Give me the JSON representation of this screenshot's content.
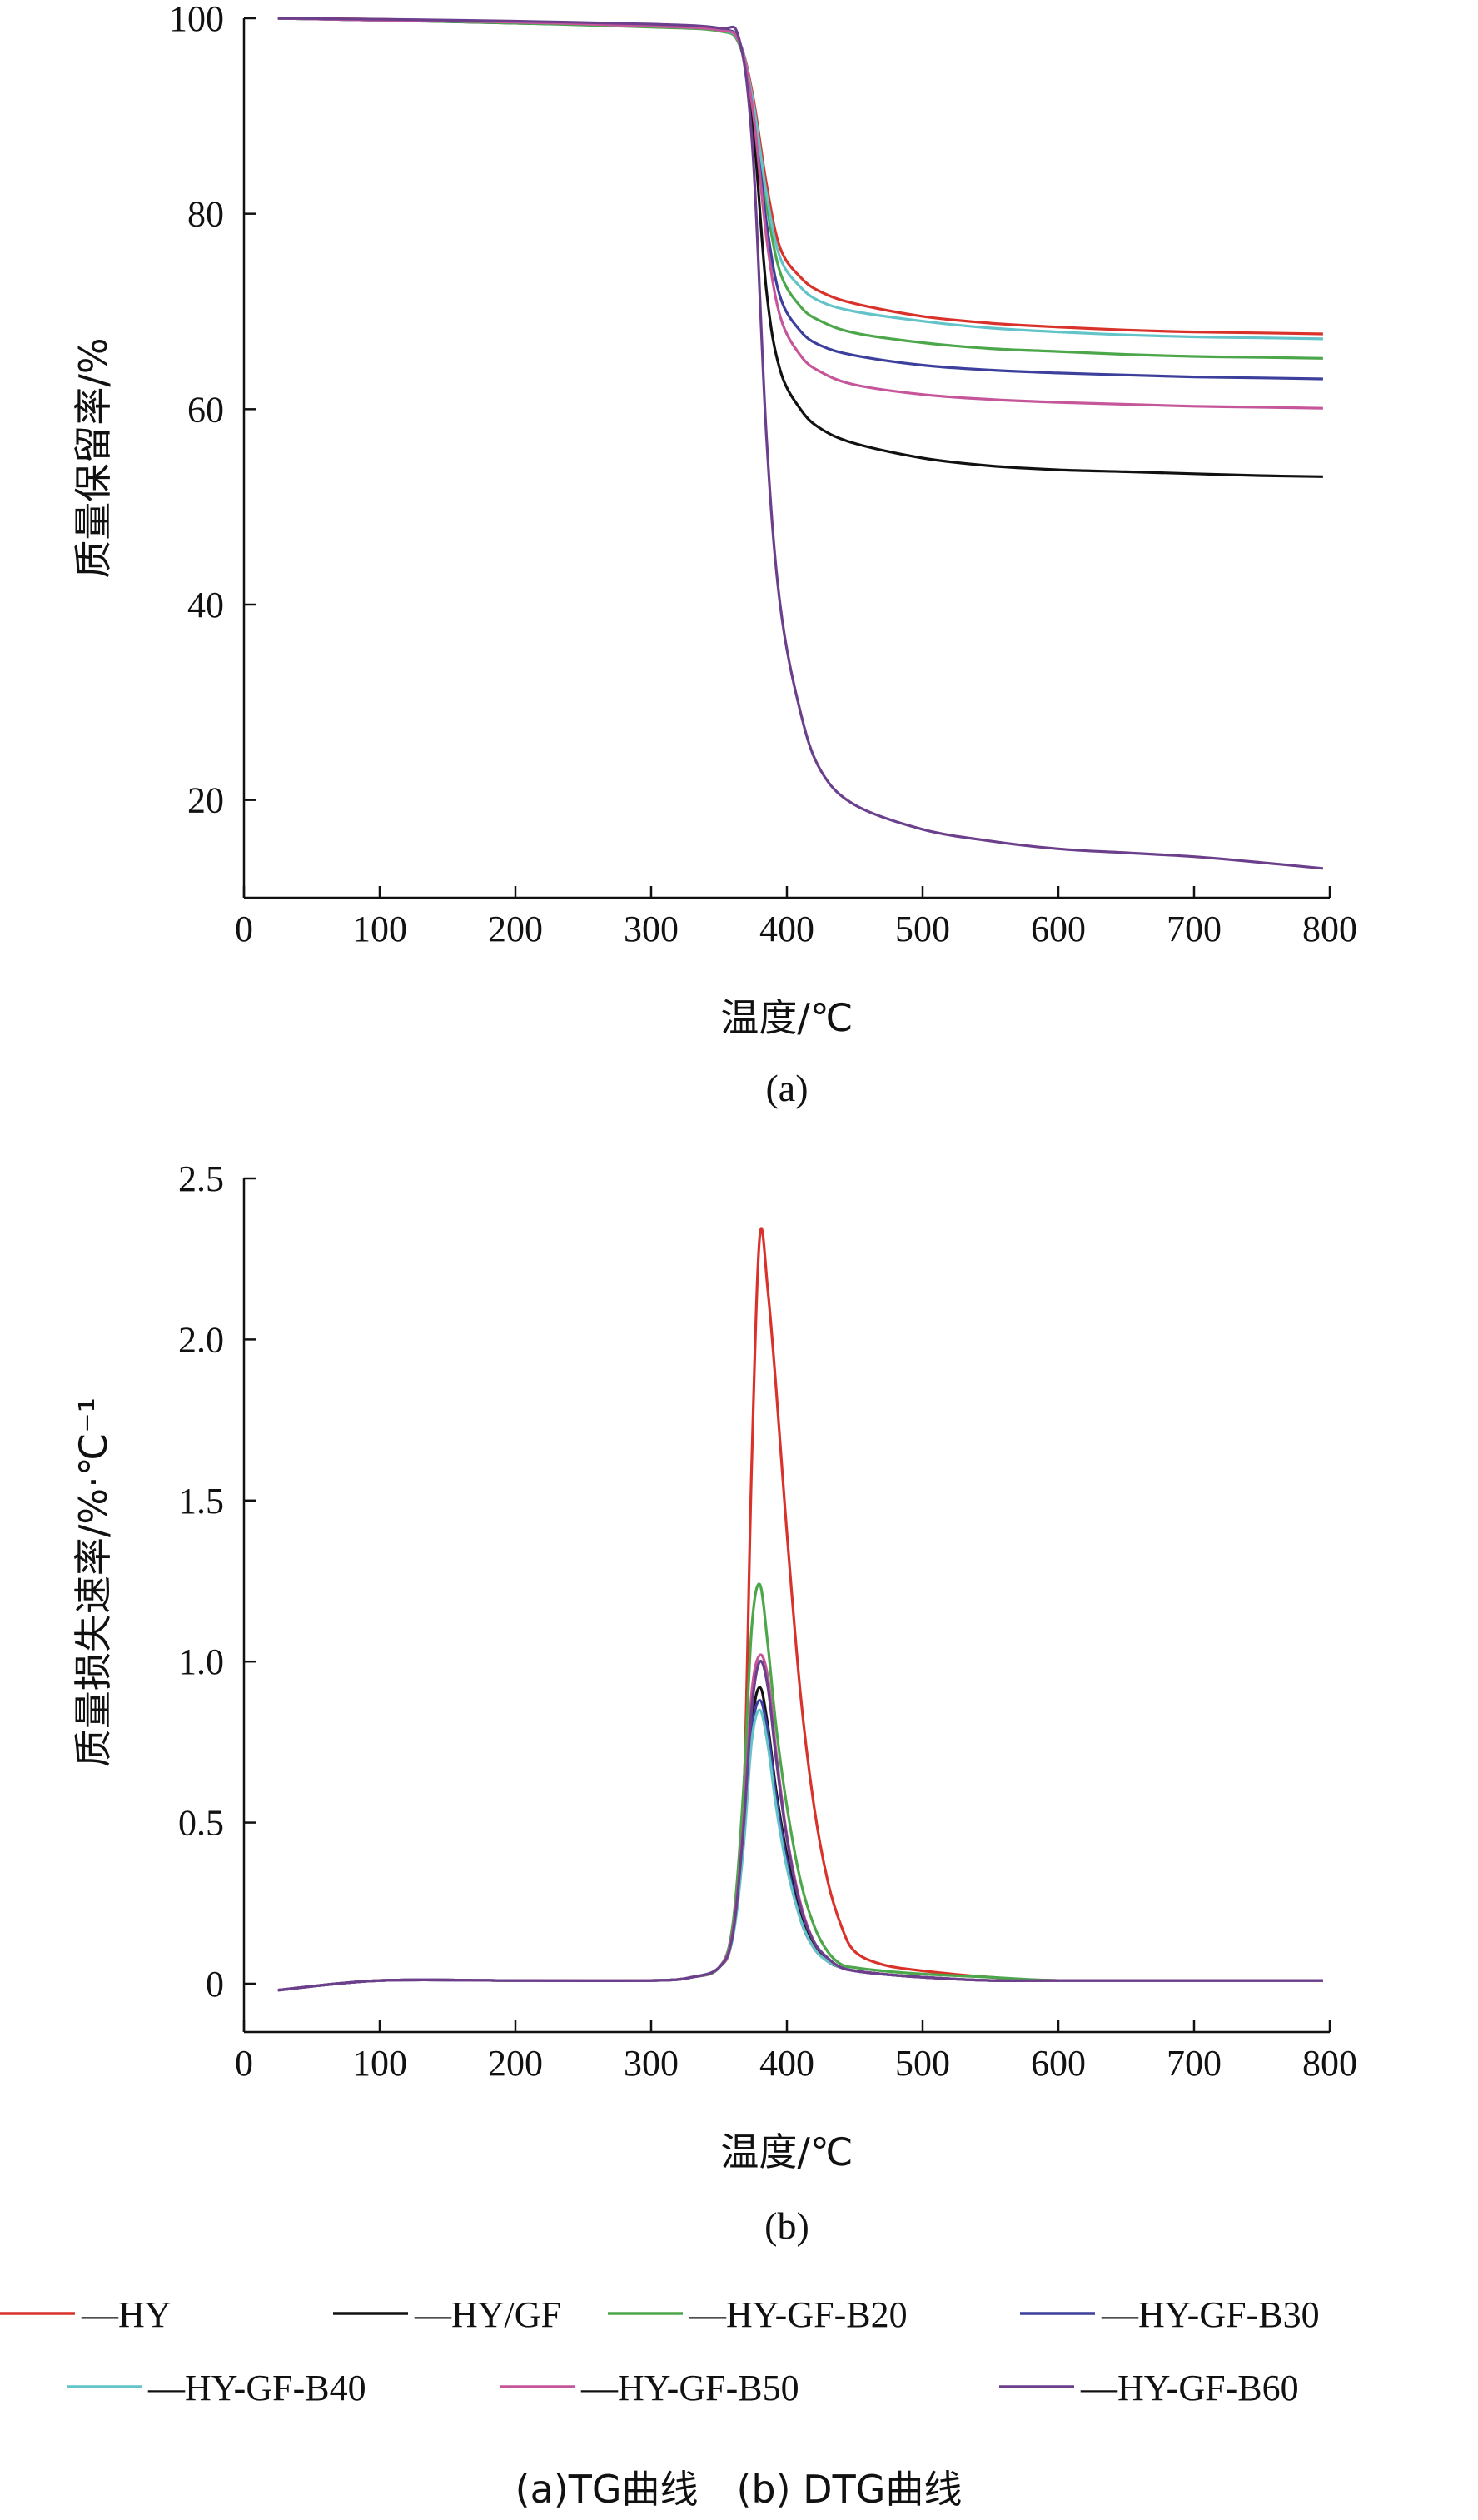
{
  "figure_caption": "(a)TG曲线　(b) DTG曲线",
  "legend": {
    "items": [
      {
        "label": "—HY",
        "color": "#d9322b"
      },
      {
        "label": "—HY/GF",
        "color": "#111111"
      },
      {
        "label": "—HY-GF-B20",
        "color": "#4ca64a"
      },
      {
        "label": "—HY-GF-B30",
        "color": "#3c3f9c"
      },
      {
        "label": "—HY-GF-B40",
        "color": "#62c3c9"
      },
      {
        "label": "—HY-GF-B50",
        "color": "#c6569a"
      },
      {
        "label": "—HY-GF-B60",
        "color": "#6b3f8c"
      }
    ]
  },
  "chart_data": [
    {
      "type": "line",
      "panel_label": "(a)",
      "xlabel": "温度/℃",
      "ylabel": "质量保留率/%",
      "xlim": [
        0,
        800
      ],
      "ylim": [
        10,
        100
      ],
      "xticks": [
        "0",
        "100",
        "200",
        "300",
        "400",
        "500",
        "600",
        "700",
        "800"
      ],
      "yticks": [
        "20",
        "40",
        "60",
        "80",
        "100"
      ],
      "ytick_values": [
        20,
        40,
        60,
        80,
        100
      ],
      "x": [
        25,
        100,
        200,
        300,
        350,
        365,
        375,
        385,
        395,
        410,
        425,
        450,
        500,
        550,
        600,
        650,
        700,
        750,
        795
      ],
      "series": [
        {
          "name": "HY",
          "color": "#d9322b",
          "values": [
            100,
            99.9,
            99.6,
            99.2,
            98.8,
            97.5,
            92,
            83,
            76.5,
            73.5,
            72,
            70.8,
            69.5,
            68.8,
            68.4,
            68.1,
            67.9,
            67.8,
            67.7
          ]
        },
        {
          "name": "HY/GF",
          "color": "#111111",
          "values": [
            100,
            99.8,
            99.5,
            99.2,
            98.8,
            97.5,
            89,
            72,
            64,
            60,
            58,
            56.5,
            55,
            54.2,
            53.8,
            53.6,
            53.4,
            53.2,
            53.1
          ]
        },
        {
          "name": "HY-GF-B20",
          "color": "#4ca64a",
          "values": [
            100,
            99.8,
            99.5,
            99.1,
            98.7,
            97.3,
            91,
            81,
            74,
            70.5,
            69,
            67.8,
            66.8,
            66.2,
            65.9,
            65.6,
            65.4,
            65.3,
            65.2
          ]
        },
        {
          "name": "HY-GF-B30",
          "color": "#3c3f9c",
          "values": [
            100,
            99.8,
            99.6,
            99.3,
            98.9,
            97.6,
            91,
            79,
            71.5,
            68,
            66.5,
            65.5,
            64.5,
            64,
            63.7,
            63.5,
            63.3,
            63.2,
            63.1
          ]
        },
        {
          "name": "HY-GF-B40",
          "color": "#62c3c9",
          "values": [
            100,
            99.8,
            99.6,
            99.2,
            98.8,
            97.5,
            91.5,
            82,
            75.5,
            72.5,
            71,
            70,
            69,
            68.3,
            67.9,
            67.6,
            67.4,
            67.3,
            67.2
          ]
        },
        {
          "name": "HY-GF-B50",
          "color": "#c6569a",
          "values": [
            100,
            99.8,
            99.6,
            99.2,
            98.8,
            97.5,
            90.5,
            77.5,
            69.5,
            65.5,
            63.8,
            62.5,
            61.5,
            61,
            60.7,
            60.5,
            60.3,
            60.2,
            60.1
          ]
        },
        {
          "name": "HY-GF-B60",
          "color": "#6b3f8c",
          "values": [
            100,
            99.9,
            99.7,
            99.4,
            99.0,
            97.8,
            86,
            57,
            40,
            29,
            23,
            19.5,
            17,
            15.8,
            15,
            14.6,
            14.2,
            13.6,
            13
          ]
        }
      ]
    },
    {
      "type": "line",
      "panel_label": "(b)",
      "xlabel": "温度/℃",
      "ylabel": "质量损失速率/%·℃⁻¹",
      "xlim": [
        0,
        800
      ],
      "ylim": [
        -0.15,
        2.5
      ],
      "xticks": [
        "0",
        "100",
        "200",
        "300",
        "400",
        "500",
        "600",
        "700",
        "800"
      ],
      "yticks": [
        "0",
        "0.5",
        "1.0",
        "1.5",
        "2.0",
        "2.5"
      ],
      "ytick_values": [
        0,
        0.5,
        1.0,
        1.5,
        2.0,
        2.5
      ],
      "x": [
        25,
        100,
        200,
        300,
        330,
        350,
        360,
        368,
        374,
        380,
        386,
        392,
        400,
        410,
        420,
        430,
        440,
        450,
        470,
        500,
        550,
        600,
        700,
        795
      ],
      "series": [
        {
          "name": "HY",
          "color": "#d9322b",
          "values": [
            -0.02,
            0.01,
            0.01,
            0.01,
            0.02,
            0.05,
            0.15,
            0.55,
            1.6,
            2.32,
            2.15,
            1.85,
            1.4,
            0.9,
            0.55,
            0.32,
            0.18,
            0.1,
            0.06,
            0.04,
            0.02,
            0.01,
            0.01,
            0.01
          ]
        },
        {
          "name": "HY/GF",
          "color": "#111111",
          "values": [
            -0.02,
            0.01,
            0.01,
            0.01,
            0.02,
            0.05,
            0.15,
            0.45,
            0.8,
            0.92,
            0.8,
            0.6,
            0.4,
            0.22,
            0.12,
            0.07,
            0.05,
            0.04,
            0.03,
            0.02,
            0.01,
            0.01,
            0.01,
            0.01
          ]
        },
        {
          "name": "HY-GF-B20",
          "color": "#4ca64a",
          "values": [
            -0.02,
            0.01,
            0.01,
            0.01,
            0.02,
            0.05,
            0.18,
            0.6,
            1.1,
            1.24,
            1.05,
            0.8,
            0.55,
            0.32,
            0.18,
            0.1,
            0.06,
            0.05,
            0.04,
            0.03,
            0.02,
            0.01,
            0.01,
            0.01
          ]
        },
        {
          "name": "HY-GF-B30",
          "color": "#3c3f9c",
          "values": [
            -0.02,
            0.01,
            0.01,
            0.01,
            0.02,
            0.05,
            0.15,
            0.45,
            0.78,
            0.88,
            0.78,
            0.58,
            0.38,
            0.2,
            0.11,
            0.07,
            0.05,
            0.04,
            0.03,
            0.02,
            0.01,
            0.01,
            0.01,
            0.01
          ]
        },
        {
          "name": "HY-GF-B40",
          "color": "#62c3c9",
          "values": [
            -0.02,
            0.01,
            0.01,
            0.01,
            0.02,
            0.05,
            0.14,
            0.42,
            0.75,
            0.85,
            0.74,
            0.55,
            0.36,
            0.2,
            0.11,
            0.07,
            0.05,
            0.04,
            0.03,
            0.02,
            0.01,
            0.01,
            0.01,
            0.01
          ]
        },
        {
          "name": "HY-GF-B50",
          "color": "#c6569a",
          "values": [
            -0.02,
            0.01,
            0.01,
            0.01,
            0.02,
            0.05,
            0.16,
            0.5,
            0.9,
            1.02,
            0.95,
            0.72,
            0.46,
            0.25,
            0.13,
            0.08,
            0.05,
            0.04,
            0.03,
            0.02,
            0.01,
            0.01,
            0.01,
            0.01
          ]
        },
        {
          "name": "HY-GF-B60",
          "color": "#6b3f8c",
          "values": [
            -0.02,
            0.01,
            0.01,
            0.01,
            0.02,
            0.05,
            0.15,
            0.48,
            0.85,
            1.0,
            0.92,
            0.7,
            0.45,
            0.24,
            0.13,
            0.08,
            0.05,
            0.04,
            0.03,
            0.02,
            0.01,
            0.01,
            0.01,
            0.01
          ]
        }
      ]
    }
  ]
}
